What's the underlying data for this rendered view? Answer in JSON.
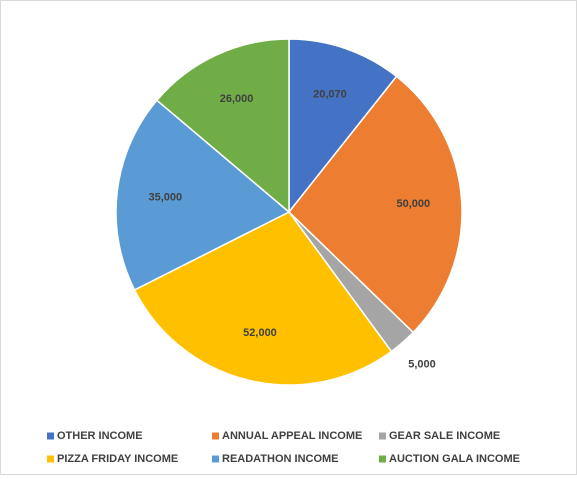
{
  "chart_data": {
    "type": "pie",
    "categories": [
      "OTHER INCOME",
      "ANNUAL APPEAL INCOME",
      "GEAR SALE INCOME",
      "PIZZA FRIDAY INCOME",
      "READATHON INCOME",
      "AUCTION GALA INCOME"
    ],
    "values": [
      20070,
      50000,
      5000,
      52000,
      35000,
      26000
    ],
    "value_labels": [
      "20,070",
      "50,000",
      "5,000",
      "52,000",
      "35,000",
      "26,000"
    ],
    "colors": [
      "#4472c4",
      "#ed7d31",
      "#a5a5a5",
      "#ffc000",
      "#5b9bd5",
      "#70ad47"
    ],
    "legend": "bottom"
  }
}
